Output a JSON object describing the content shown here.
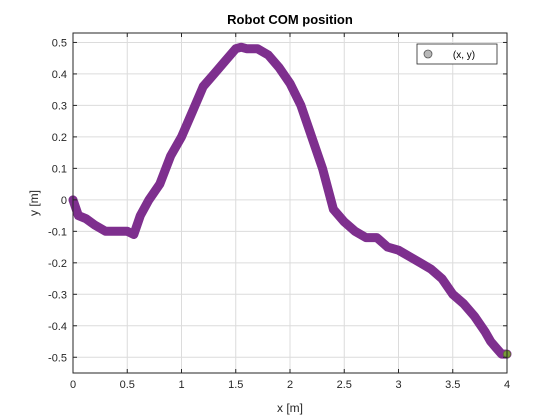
{
  "chart_data": {
    "type": "line",
    "title": "Robot COM position",
    "xlabel": "x [m]",
    "ylabel": "y [m]",
    "xlim": [
      0,
      4
    ],
    "ylim": [
      -0.55,
      0.53
    ],
    "xticks": [
      0,
      0.5,
      1,
      1.5,
      2,
      2.5,
      3,
      3.5,
      4
    ],
    "yticks": [
      -0.5,
      -0.4,
      -0.3,
      -0.2,
      -0.1,
      0,
      0.1,
      0.2,
      0.3,
      0.4,
      0.5
    ],
    "grid": true,
    "legend_position": "top-right",
    "series": [
      {
        "name": "(x, y)",
        "color": "#7E2F8E",
        "marker_color": "#b8b8b8",
        "x": [
          0.0,
          0.05,
          0.12,
          0.2,
          0.3,
          0.4,
          0.5,
          0.56,
          0.62,
          0.7,
          0.8,
          0.9,
          1.0,
          1.1,
          1.2,
          1.3,
          1.4,
          1.5,
          1.55,
          1.6,
          1.7,
          1.8,
          1.9,
          2.0,
          2.1,
          2.2,
          2.3,
          2.4,
          2.5,
          2.6,
          2.7,
          2.8,
          2.9,
          3.0,
          3.1,
          3.2,
          3.3,
          3.4,
          3.5,
          3.6,
          3.7,
          3.8,
          3.85,
          3.9,
          3.95,
          4.0
        ],
        "y": [
          0.0,
          -0.05,
          -0.06,
          -0.08,
          -0.1,
          -0.1,
          -0.1,
          -0.11,
          -0.05,
          0.0,
          0.05,
          0.14,
          0.2,
          0.28,
          0.36,
          0.4,
          0.44,
          0.48,
          0.485,
          0.48,
          0.48,
          0.46,
          0.42,
          0.37,
          0.3,
          0.2,
          0.1,
          -0.03,
          -0.07,
          -0.1,
          -0.12,
          -0.12,
          -0.15,
          -0.16,
          -0.18,
          -0.2,
          -0.22,
          -0.25,
          -0.3,
          -0.33,
          -0.37,
          -0.42,
          -0.45,
          -0.47,
          -0.49,
          -0.49
        ]
      }
    ]
  }
}
